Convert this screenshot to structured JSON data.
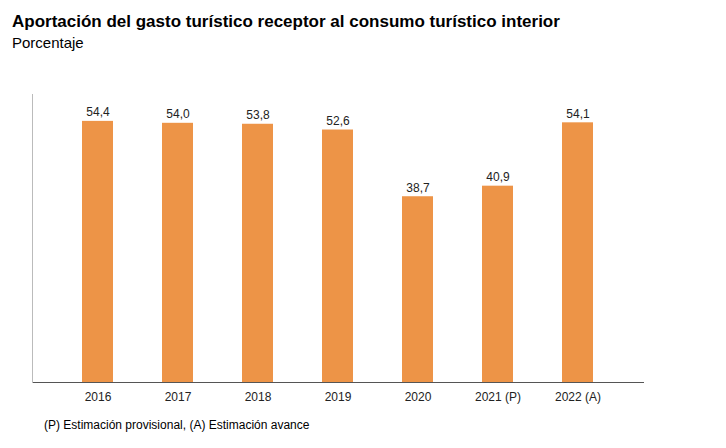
{
  "chart_data": {
    "type": "bar",
    "title": "Aportación del gasto turístico receptor al consumo turístico interior",
    "subtitle": "Porcentaje",
    "caption": "(P) Estimación provisional, (A) Estimación avance",
    "categories": [
      "2016",
      "2017",
      "2018",
      "2019",
      "2020",
      "2021 (P)",
      "2022 (A)"
    ],
    "values": [
      54.4,
      54.0,
      53.8,
      52.6,
      38.7,
      40.9,
      54.1
    ],
    "value_labels": [
      "54,4",
      "54,0",
      "53,8",
      "52,6",
      "38,7",
      "40,9",
      "54,1"
    ],
    "color": "#ed9447",
    "ylim": [
      0,
      60
    ],
    "grid": false,
    "data_labels": true,
    "tick_labels": "x"
  }
}
